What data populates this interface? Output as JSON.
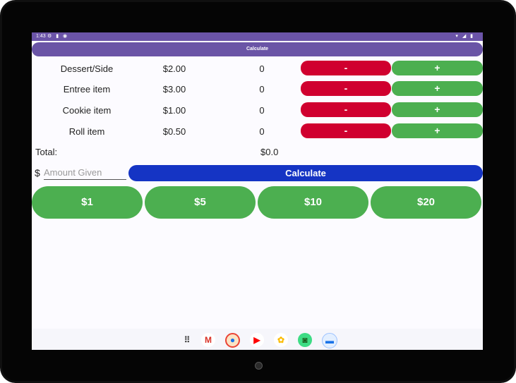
{
  "status": {
    "time": "1:43",
    "left_icons": "⚙ ▮ ◉",
    "right_icons": "▾ ◢ ▮"
  },
  "app": {
    "title": "Calculate"
  },
  "items": [
    {
      "name": "Dessert/Side",
      "price": "$2.00",
      "qty": "0",
      "minus": "-",
      "plus": "+"
    },
    {
      "name": "Entree item",
      "price": "$3.00",
      "qty": "0",
      "minus": "-",
      "plus": "+"
    },
    {
      "name": "Cookie item",
      "price": "$1.00",
      "qty": "0",
      "minus": "-",
      "plus": "+"
    },
    {
      "name": "Roll item",
      "price": "$0.50",
      "qty": "0",
      "minus": "-",
      "plus": "+"
    }
  ],
  "total": {
    "label": "Total:",
    "value": "$0.0"
  },
  "payment": {
    "currency_symbol": "$",
    "amount_placeholder": "Amount Given",
    "calculate_label": "Calculate"
  },
  "quick_amounts": [
    "$1",
    "$5",
    "$10",
    "$20"
  ],
  "dock": [
    {
      "icon": "apps-grid-icon",
      "glyph": "⠿",
      "color": "#444444"
    },
    {
      "icon": "gmail-icon",
      "glyph": "M",
      "color": "#d93025"
    },
    {
      "icon": "chrome-icon",
      "glyph": "●",
      "color": "#1a73e8"
    },
    {
      "icon": "youtube-icon",
      "glyph": "▶",
      "color": "#ff0000"
    },
    {
      "icon": "photos-icon",
      "glyph": "✿",
      "color": "#fbbc04"
    },
    {
      "icon": "android-icon",
      "glyph": "◙",
      "color": "#3ddc84"
    },
    {
      "icon": "messages-icon",
      "glyph": "▬",
      "color": "#1a73e8"
    }
  ],
  "colors": {
    "appbar": "#6a54a6",
    "minus": "#d0002f",
    "plus": "#4caf50",
    "calculate": "#1534c4",
    "money": "#4caf50"
  }
}
